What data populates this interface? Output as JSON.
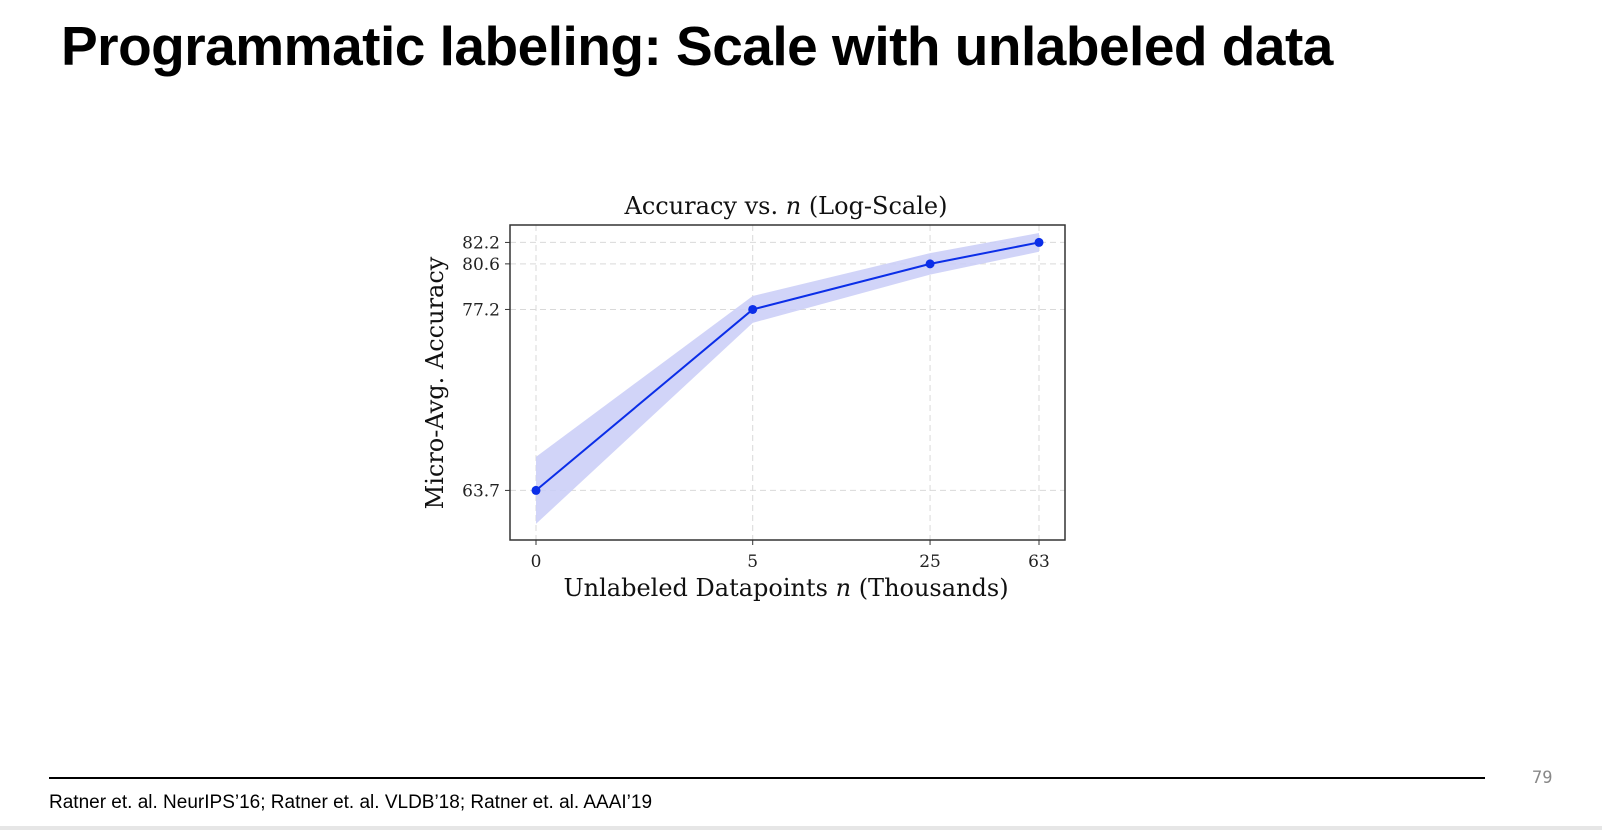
{
  "slide": {
    "title": "Programmatic labeling: Scale with unlabeled data",
    "citation": "Ratner et. al. NeurIPS’16; Ratner et. al. VLDB’18; Ratner et. al. AAAI’19",
    "page_number": "79"
  },
  "chart_data": {
    "type": "line",
    "title_prefix": "Accuracy vs. ",
    "title_var": "n",
    "title_suffix": " (Log-Scale)",
    "xlabel_prefix": "Unlabeled Datapoints ",
    "xlabel_var": "n",
    "xlabel_suffix": " (Thousands)",
    "ylabel": "Micro-Avg. Accuracy",
    "x_scale": "log",
    "x": [
      0,
      5,
      25,
      63
    ],
    "x_tick_labels": [
      "0",
      "5",
      "25",
      "63"
    ],
    "y_ticks": [
      63.7,
      77.2,
      80.6,
      82.2
    ],
    "y_tick_labels": [
      "63.7",
      "77.2",
      "80.6",
      "82.2"
    ],
    "ylim": [
      60.0,
      83.5
    ],
    "grid": true,
    "series": [
      {
        "values": [
          63.7,
          77.2,
          80.6,
          82.2
        ],
        "band_upper": [
          66.2,
          78.2,
          81.4,
          82.9
        ],
        "band_lower": [
          61.2,
          76.2,
          79.8,
          81.5
        ],
        "color": "#0b2ee8",
        "band_color": "#c9cdf7"
      }
    ]
  }
}
